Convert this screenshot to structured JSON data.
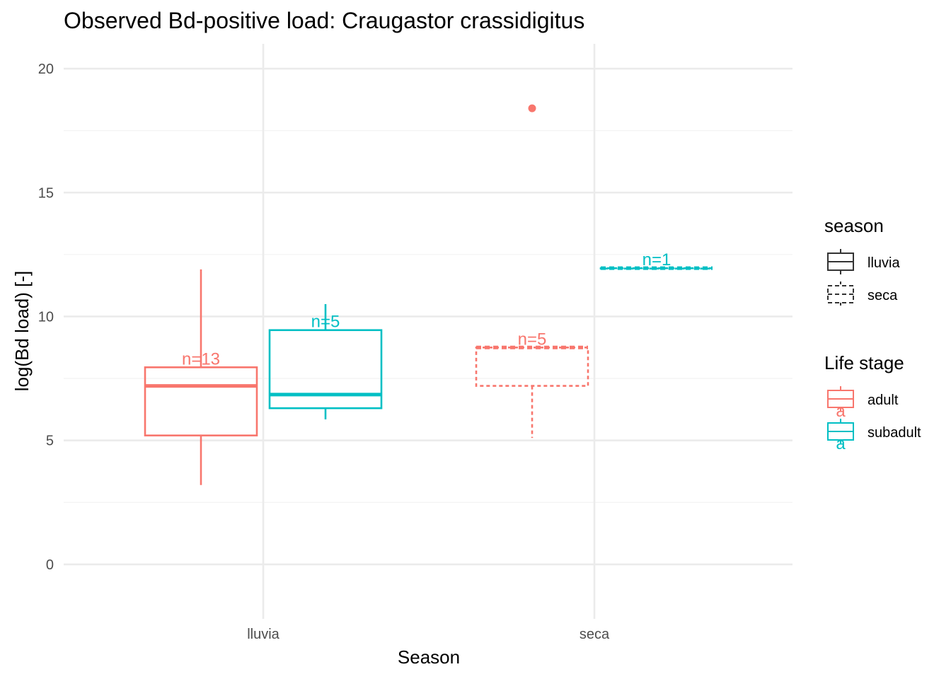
{
  "chart_data": {
    "type": "box",
    "title": "Observed Bd-positive load: Craugastor crassidigitus",
    "xlabel": "Season",
    "ylabel": "log(Bd load) [-]",
    "categories": [
      "lluvia",
      "seca"
    ],
    "ylim": [
      -2.2,
      21
    ],
    "yticks": [
      0,
      5,
      10,
      15,
      20
    ],
    "grid": true,
    "legend_position": "right",
    "legends": [
      {
        "title": "season",
        "entries": [
          {
            "label": "lluvia",
            "linetype": "solid"
          },
          {
            "label": "seca",
            "linetype": "dashed"
          }
        ]
      },
      {
        "title": "Life stage",
        "entries": [
          {
            "label": "adult",
            "color": "#F8766D",
            "key_glyph": "a"
          },
          {
            "label": "subadult",
            "color": "#00BFC4",
            "key_glyph": "a"
          }
        ]
      }
    ],
    "series": [
      {
        "name": "adult",
        "color": "#F8766D",
        "boxes": [
          {
            "season": "lluvia",
            "lower_whisker": 3.2,
            "q1": 5.2,
            "median": 7.2,
            "q3": 7.95,
            "upper_whisker": 11.9,
            "n_label": "n=13",
            "outliers": []
          },
          {
            "season": "seca",
            "lower_whisker": 5.1,
            "q1": 7.2,
            "median": 8.75,
            "q3": 8.75,
            "upper_whisker": 8.75,
            "n_label": "n=5",
            "outliers": [
              18.4
            ]
          }
        ]
      },
      {
        "name": "subadult",
        "color": "#00BFC4",
        "boxes": [
          {
            "season": "lluvia",
            "lower_whisker": 5.85,
            "q1": 6.3,
            "median": 6.85,
            "q3": 9.45,
            "upper_whisker": 10.5,
            "n_label": "n=5",
            "outliers": []
          },
          {
            "season": "seca",
            "lower_whisker": 11.95,
            "q1": 11.95,
            "median": 11.95,
            "q3": 11.95,
            "upper_whisker": 11.95,
            "n_label": "n=1",
            "outliers": []
          }
        ]
      }
    ]
  }
}
